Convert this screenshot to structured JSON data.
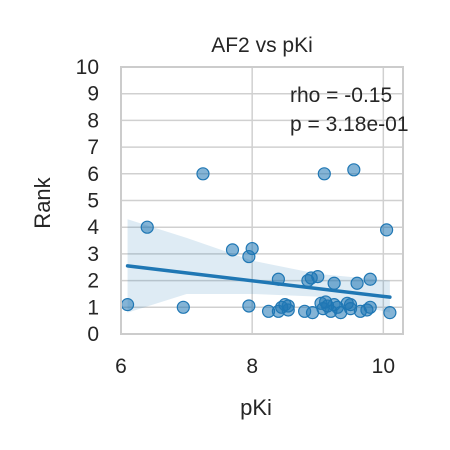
{
  "chart_data": {
    "type": "scatter",
    "title": "AF2 vs pKi",
    "xlabel": "pKi",
    "ylabel": "Rank",
    "xlim": [
      6.0,
      10.3
    ],
    "ylim": [
      0,
      10
    ],
    "xticks": [
      "6",
      "8",
      "10"
    ],
    "yticks": [
      "0",
      "1",
      "2",
      "3",
      "4",
      "5",
      "6",
      "7",
      "8",
      "9",
      "10"
    ],
    "grid": true,
    "annotations": [
      "rho = -0.15",
      "p = 3.18e-01"
    ],
    "points": [
      {
        "x": 6.1,
        "y": 1.1
      },
      {
        "x": 6.4,
        "y": 4.0
      },
      {
        "x": 6.95,
        "y": 1.0
      },
      {
        "x": 7.25,
        "y": 6.0
      },
      {
        "x": 7.7,
        "y": 3.15
      },
      {
        "x": 7.95,
        "y": 2.9
      },
      {
        "x": 8.0,
        "y": 3.2
      },
      {
        "x": 7.95,
        "y": 1.05
      },
      {
        "x": 8.25,
        "y": 0.85
      },
      {
        "x": 8.4,
        "y": 2.05
      },
      {
        "x": 8.45,
        "y": 1.0
      },
      {
        "x": 8.4,
        "y": 0.85
      },
      {
        "x": 8.5,
        "y": 1.1
      },
      {
        "x": 8.55,
        "y": 1.05
      },
      {
        "x": 8.55,
        "y": 0.9
      },
      {
        "x": 8.8,
        "y": 0.85
      },
      {
        "x": 8.85,
        "y": 2.0
      },
      {
        "x": 8.9,
        "y": 2.1
      },
      {
        "x": 8.92,
        "y": 0.8
      },
      {
        "x": 9.0,
        "y": 2.15
      },
      {
        "x": 9.05,
        "y": 1.15
      },
      {
        "x": 9.08,
        "y": 0.95
      },
      {
        "x": 9.1,
        "y": 6.0
      },
      {
        "x": 9.12,
        "y": 1.2
      },
      {
        "x": 9.15,
        "y": 1.05
      },
      {
        "x": 9.2,
        "y": 0.85
      },
      {
        "x": 9.25,
        "y": 1.1
      },
      {
        "x": 9.25,
        "y": 1.9
      },
      {
        "x": 9.3,
        "y": 1.0
      },
      {
        "x": 9.35,
        "y": 0.8
      },
      {
        "x": 9.45,
        "y": 1.15
      },
      {
        "x": 9.5,
        "y": 0.95
      },
      {
        "x": 9.5,
        "y": 1.1
      },
      {
        "x": 9.55,
        "y": 6.15
      },
      {
        "x": 9.6,
        "y": 1.9
      },
      {
        "x": 9.65,
        "y": 0.85
      },
      {
        "x": 9.75,
        "y": 0.9
      },
      {
        "x": 9.8,
        "y": 2.05
      },
      {
        "x": 9.8,
        "y": 1.0
      },
      {
        "x": 10.05,
        "y": 3.9
      },
      {
        "x": 10.1,
        "y": 0.8
      }
    ],
    "regression": {
      "x": [
        6.1,
        10.1
      ],
      "y": [
        2.55,
        1.38
      ]
    },
    "ci_band": {
      "x": [
        6.1,
        7.0,
        8.0,
        9.0,
        10.1
      ],
      "upper": [
        4.3,
        3.6,
        2.75,
        2.25,
        2.0
      ],
      "lower": [
        0.8,
        1.5,
        1.5,
        1.4,
        0.8
      ]
    },
    "colors": {
      "points": "#1f77b4",
      "line": "#1f77b4",
      "band": "#1f77b4",
      "grid": "#d0d0d0",
      "axis": "#cccccc",
      "text": "#262626"
    }
  }
}
